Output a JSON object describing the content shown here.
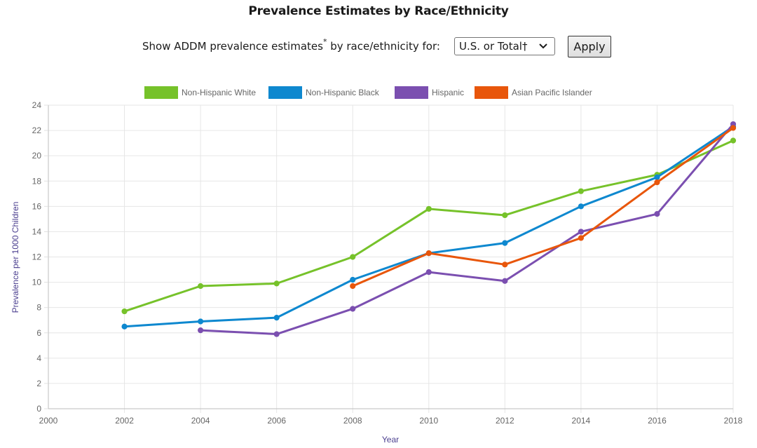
{
  "header": {
    "title": "Prevalence Estimates by Race/Ethnicity"
  },
  "controls": {
    "prompt_text": "Show ADDM prevalence estimates",
    "prompt_mark": "*",
    "prompt_suffix": " by race/ethnicity for:",
    "select_value": "U.S. or Total†",
    "apply_label": "Apply"
  },
  "chart_data": {
    "type": "line",
    "title": "",
    "xlabel": "Year",
    "ylabel": "Prevalence per 1000 Children",
    "xlim": [
      2000,
      2018
    ],
    "ylim": [
      0,
      24
    ],
    "x_ticks": [
      "2000",
      "2002",
      "2004",
      "2006",
      "2008",
      "2010",
      "2012",
      "2014",
      "2016",
      "2018"
    ],
    "y_ticks": [
      "0",
      "2",
      "4",
      "6",
      "8",
      "10",
      "12",
      "14",
      "16",
      "18",
      "20",
      "22",
      "24"
    ],
    "grid": true,
    "legend_position": "top",
    "series": [
      {
        "name": "Non-Hispanic White",
        "color": "#76c22a",
        "points": [
          [
            2002,
            7.7
          ],
          [
            2004,
            9.7
          ],
          [
            2006,
            9.9
          ],
          [
            2008,
            12.0
          ],
          [
            2010,
            15.8
          ],
          [
            2012,
            15.3
          ],
          [
            2014,
            17.2
          ],
          [
            2016,
            18.5
          ],
          [
            2018,
            21.2
          ]
        ]
      },
      {
        "name": "Non-Hispanic Black",
        "color": "#0e88cf",
        "points": [
          [
            2002,
            6.5
          ],
          [
            2004,
            6.9
          ],
          [
            2006,
            7.2
          ],
          [
            2008,
            10.2
          ],
          [
            2010,
            12.3
          ],
          [
            2012,
            13.1
          ],
          [
            2014,
            16.0
          ],
          [
            2016,
            18.3
          ],
          [
            2018,
            22.3
          ]
        ]
      },
      {
        "name": "Hispanic",
        "color": "#7b4fb0",
        "points": [
          [
            2004,
            6.2
          ],
          [
            2006,
            5.9
          ],
          [
            2008,
            7.9
          ],
          [
            2010,
            10.8
          ],
          [
            2012,
            10.1
          ],
          [
            2014,
            14.0
          ],
          [
            2016,
            15.4
          ],
          [
            2018,
            22.5
          ]
        ]
      },
      {
        "name": "Asian Pacific Islander",
        "color": "#e8560b",
        "points": [
          [
            2008,
            9.7
          ],
          [
            2010,
            12.3
          ],
          [
            2012,
            11.4
          ],
          [
            2014,
            13.5
          ],
          [
            2016,
            17.9
          ],
          [
            2018,
            22.2
          ]
        ]
      }
    ]
  }
}
